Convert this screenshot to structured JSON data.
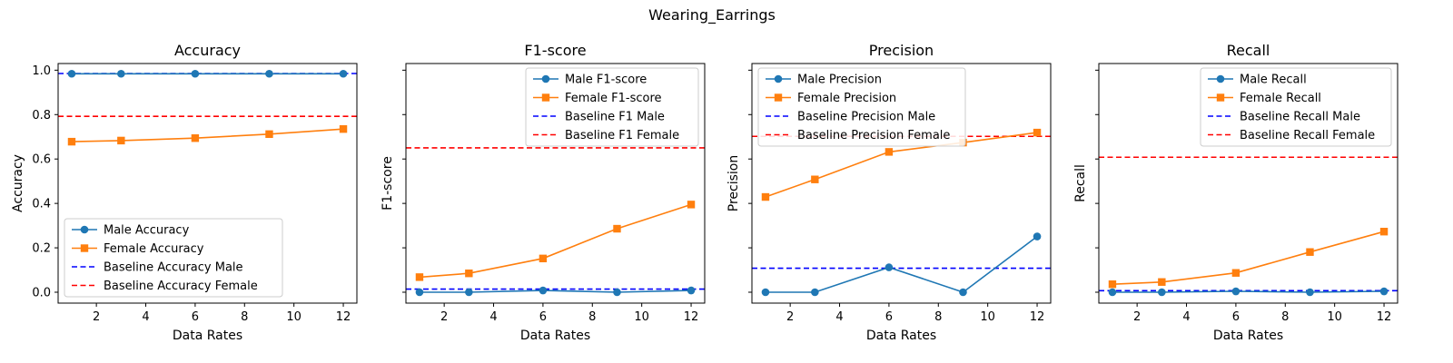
{
  "figure": {
    "suptitle": "Wearing_Earrings"
  },
  "colors": {
    "male": "#1f77b4",
    "female": "#ff7f0e",
    "baseline_male": "#0000ff",
    "baseline_female": "#ff0000"
  },
  "chart_data": [
    {
      "type": "line",
      "title": "Accuracy",
      "xlabel": "Data Rates",
      "ylabel": "Accuracy",
      "xlim": [
        0.45,
        12.55
      ],
      "ylim": [
        -0.049,
        1.03
      ],
      "xticks": [
        2,
        4,
        6,
        8,
        10,
        12
      ],
      "yticks": [
        0.0,
        0.2,
        0.4,
        0.6,
        0.8,
        1.0
      ],
      "ytick_labels": [
        "0.0",
        "0.2",
        "0.4",
        "0.6",
        "0.8",
        "1.0"
      ],
      "x": [
        1,
        3,
        6,
        9,
        12
      ],
      "series": [
        {
          "name": "Male Accuracy",
          "values": [
            0.984,
            0.984,
            0.984,
            0.984,
            0.984
          ]
        },
        {
          "name": "Female Accuracy",
          "values": [
            0.678,
            0.683,
            0.694,
            0.712,
            0.735
          ]
        }
      ],
      "baselines": [
        {
          "name": "Baseline Accuracy Male",
          "value": 0.985
        },
        {
          "name": "Baseline Accuracy Female",
          "value": 0.792
        }
      ],
      "legend": "lower-left",
      "grid": false
    },
    {
      "type": "line",
      "title": "F1-score",
      "xlabel": "Data Rates",
      "ylabel": "F1-score",
      "xlim": [
        0.45,
        12.55
      ],
      "ylim": [
        -0.049,
        1.03
      ],
      "xticks": [
        2,
        4,
        6,
        8,
        10,
        12
      ],
      "yticks": [
        0.0,
        0.2,
        0.4,
        0.6,
        0.8,
        1.0
      ],
      "ytick_labels": [],
      "x": [
        1,
        3,
        6,
        9,
        12
      ],
      "series": [
        {
          "name": "Male F1-score",
          "values": [
            0.0,
            0.0,
            0.008,
            0.0,
            0.008
          ]
        },
        {
          "name": "Female F1-score",
          "values": [
            0.068,
            0.085,
            0.152,
            0.286,
            0.395
          ]
        }
      ],
      "baselines": [
        {
          "name": "Baseline F1 Male",
          "value": 0.014
        },
        {
          "name": "Baseline F1 Female",
          "value": 0.65
        }
      ],
      "legend": "upper-right",
      "grid": false
    },
    {
      "type": "line",
      "title": "Precision",
      "xlabel": "Data Rates",
      "ylabel": "Precision",
      "xlim": [
        0.45,
        12.55
      ],
      "ylim": [
        -0.049,
        1.03
      ],
      "xticks": [
        2,
        4,
        6,
        8,
        10,
        12
      ],
      "yticks": [
        0.0,
        0.2,
        0.4,
        0.6,
        0.8,
        1.0
      ],
      "ytick_labels": [],
      "x": [
        1,
        3,
        6,
        9,
        12
      ],
      "series": [
        {
          "name": "Male Precision",
          "values": [
            0.0,
            0.0,
            0.112,
            0.0,
            0.251
          ]
        },
        {
          "name": "Female Precision",
          "values": [
            0.429,
            0.508,
            0.632,
            0.674,
            0.719
          ]
        }
      ],
      "baselines": [
        {
          "name": "Baseline Precision Male",
          "value": 0.108
        },
        {
          "name": "Baseline Precision Female",
          "value": 0.702
        }
      ],
      "legend": "upper-left",
      "grid": false
    },
    {
      "type": "line",
      "title": "Recall",
      "xlabel": "Data Rates",
      "ylabel": "Recall",
      "xlim": [
        0.45,
        12.55
      ],
      "ylim": [
        -0.049,
        1.03
      ],
      "xticks": [
        2,
        4,
        6,
        8,
        10,
        12
      ],
      "yticks": [
        0.0,
        0.2,
        0.4,
        0.6,
        0.8,
        1.0
      ],
      "ytick_labels": [],
      "x": [
        1,
        3,
        6,
        9,
        12
      ],
      "series": [
        {
          "name": "Male Recall",
          "values": [
            0.0,
            0.0,
            0.004,
            0.0,
            0.004
          ]
        },
        {
          "name": "Female Recall",
          "values": [
            0.036,
            0.046,
            0.087,
            0.181,
            0.273
          ]
        }
      ],
      "baselines": [
        {
          "name": "Baseline Recall Male",
          "value": 0.007
        },
        {
          "name": "Baseline Recall Female",
          "value": 0.608
        }
      ],
      "legend": "upper-right",
      "grid": false
    }
  ]
}
